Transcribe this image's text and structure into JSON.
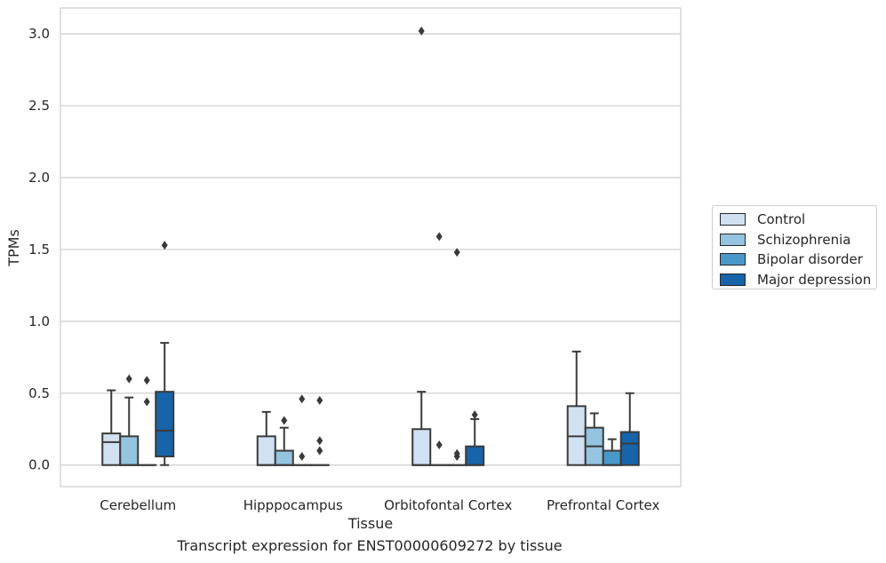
{
  "caption": "Transcript expression for ENST00000609272 by tissue",
  "chart_data": {
    "type": "boxplot",
    "xlabel": "Tissue",
    "ylabel": "TPMs",
    "ylim": [
      -0.15,
      3.18
    ],
    "yticks": [
      "0.0",
      "0.5",
      "1.0",
      "1.5",
      "2.0",
      "2.5",
      "3.0"
    ],
    "grid": true,
    "legend_position": "right",
    "categories": [
      "Cerebellum",
      "Hipppocampus",
      "Orbitofontal Cortex",
      "Prefrontal Cortex"
    ],
    "series": [
      {
        "name": "Control",
        "color": "#d0e1f2",
        "boxes": [
          {
            "q1": 0,
            "median": 0.16,
            "q3": 0.22,
            "whisker_low": 0,
            "whisker_high": 0.52,
            "outliers": []
          },
          {
            "q1": 0,
            "median": 0,
            "q3": 0.2,
            "whisker_low": 0,
            "whisker_high": 0.37,
            "outliers": []
          },
          {
            "q1": 0,
            "median": 0,
            "q3": 0.25,
            "whisker_low": 0,
            "whisker_high": 0.51,
            "outliers": [
              3.02
            ]
          },
          {
            "q1": 0,
            "median": 0.2,
            "q3": 0.41,
            "whisker_low": 0,
            "whisker_high": 0.79,
            "outliers": []
          }
        ]
      },
      {
        "name": "Schizophrenia",
        "color": "#94c4df",
        "boxes": [
          {
            "q1": 0,
            "median": 0,
            "q3": 0.2,
            "whisker_low": 0,
            "whisker_high": 0.47,
            "outliers": [
              0.6
            ]
          },
          {
            "q1": 0,
            "median": 0,
            "q3": 0.1,
            "whisker_low": 0,
            "whisker_high": 0.26,
            "outliers": [
              0.31
            ]
          },
          {
            "q1": 0,
            "median": 0,
            "q3": 0,
            "whisker_low": 0,
            "whisker_high": 0,
            "outliers": [
              0.14,
              1.59
            ]
          },
          {
            "q1": 0,
            "median": 0.13,
            "q3": 0.26,
            "whisker_low": 0,
            "whisker_high": 0.36,
            "outliers": []
          }
        ]
      },
      {
        "name": "Bipolar disorder",
        "color": "#4a98c9",
        "boxes": [
          {
            "q1": 0,
            "median": 0,
            "q3": 0,
            "whisker_low": 0,
            "whisker_high": 0,
            "outliers": [
              0.44,
              0.59
            ]
          },
          {
            "q1": 0,
            "median": 0,
            "q3": 0,
            "whisker_low": 0,
            "whisker_high": 0,
            "outliers": [
              0.06,
              0.46
            ]
          },
          {
            "q1": 0,
            "median": 0,
            "q3": 0,
            "whisker_low": 0,
            "whisker_high": 0,
            "outliers": [
              0.06,
              0.08,
              1.48
            ]
          },
          {
            "q1": 0,
            "median": 0,
            "q3": 0.1,
            "whisker_low": 0,
            "whisker_high": 0.18,
            "outliers": []
          }
        ]
      },
      {
        "name": "Major depression",
        "color": "#1764ab",
        "boxes": [
          {
            "q1": 0.06,
            "median": 0.24,
            "q3": 0.51,
            "whisker_low": 0,
            "whisker_high": 0.85,
            "outliers": [
              1.53
            ]
          },
          {
            "q1": 0,
            "median": 0,
            "q3": 0,
            "whisker_low": 0,
            "whisker_high": 0,
            "outliers": [
              0.1,
              0.17,
              0.45
            ]
          },
          {
            "q1": 0,
            "median": 0,
            "q3": 0.13,
            "whisker_low": 0,
            "whisker_high": 0.32,
            "outliers": [
              0.35
            ]
          },
          {
            "q1": 0,
            "median": 0.15,
            "q3": 0.23,
            "whisker_low": 0,
            "whisker_high": 0.5,
            "outliers": []
          }
        ]
      }
    ]
  }
}
